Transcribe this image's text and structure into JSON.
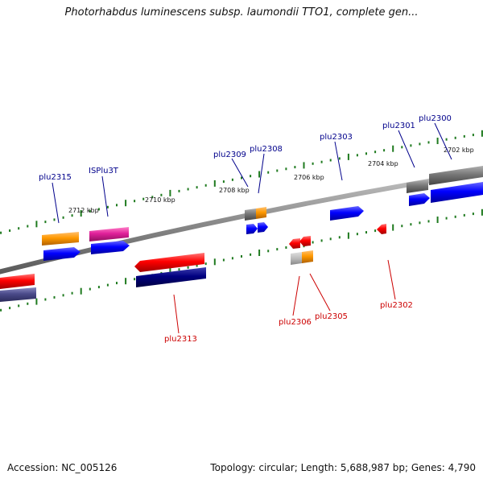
{
  "header": {
    "title": "Photorhabdus luminescens subsp. laumondii TTO1, complete gen..."
  },
  "footer": {
    "accession": "Accession: NC_005126",
    "stats": "Topology: circular; Length: 5,688,987 bp; Genes: 4,790"
  },
  "colors": {
    "backbone": "#888888",
    "tick_major": "#1f7a1f",
    "forward_label": "#00008b",
    "reverse_label": "#cc0000",
    "cds_red": "#ff0000",
    "cds_blue": "#0000ff",
    "rna_orange": "#ff9900",
    "pseudo_gray": "#777777",
    "mobile_pink": "#e0209a",
    "navy": "#000080",
    "slate": "#4a4a8a"
  },
  "scale_labels": [
    {
      "id": "kbp-2712",
      "text": "2712 kbp"
    },
    {
      "id": "kbp-2710",
      "text": "2710 kbp"
    },
    {
      "id": "kbp-2708",
      "text": "2708 kbp"
    },
    {
      "id": "kbp-2706",
      "text": "2706 kbp"
    },
    {
      "id": "kbp-2704",
      "text": "2704 kbp"
    },
    {
      "id": "kbp-2702",
      "text": "2702 kbp"
    }
  ],
  "gene_labels": [
    {
      "id": "plu2315",
      "text": "plu2315",
      "strand": "forward"
    },
    {
      "id": "ISPlu3T",
      "text": "ISPlu3T",
      "strand": "forward"
    },
    {
      "id": "plu2309",
      "text": "plu2309",
      "strand": "forward"
    },
    {
      "id": "plu2308",
      "text": "plu2308",
      "strand": "forward"
    },
    {
      "id": "plu2303",
      "text": "plu2303",
      "strand": "forward"
    },
    {
      "id": "plu2301",
      "text": "plu2301",
      "strand": "forward"
    },
    {
      "id": "plu2300",
      "text": "plu2300",
      "strand": "forward"
    },
    {
      "id": "plu2313",
      "text": "plu2313",
      "strand": "reverse"
    },
    {
      "id": "plu2306",
      "text": "plu2306",
      "strand": "reverse"
    },
    {
      "id": "plu2305",
      "text": "plu2305",
      "strand": "reverse"
    },
    {
      "id": "plu2302",
      "text": "plu2302",
      "strand": "reverse"
    }
  ]
}
